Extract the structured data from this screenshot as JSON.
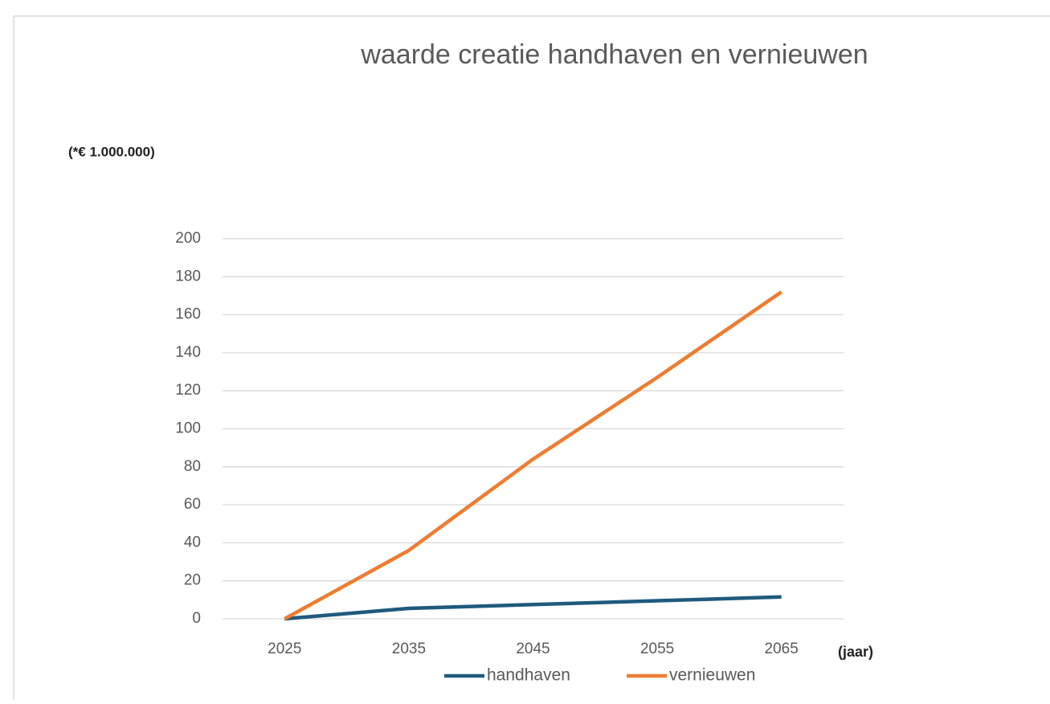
{
  "chart_data": {
    "type": "line",
    "title": "waarde creatie handhaven en vernieuwen",
    "y_label": "(*€ 1.000.000)",
    "x_label": "(jaar)",
    "categories": [
      "2025",
      "2035",
      "2045",
      "2055",
      "2065"
    ],
    "series": [
      {
        "name": "handhaven",
        "color": "#1f5a7d",
        "values": [
          0,
          5.5,
          7.5,
          9.5,
          11.5
        ]
      },
      {
        "name": "vernieuwen",
        "color": "#ed7d31",
        "values": [
          0,
          36,
          84,
          127,
          172
        ]
      }
    ],
    "ylim": [
      0,
      200
    ],
    "yticks": [
      0,
      20,
      40,
      60,
      80,
      100,
      120,
      140,
      160,
      180,
      200
    ],
    "grid": true,
    "legend": "bottom"
  }
}
